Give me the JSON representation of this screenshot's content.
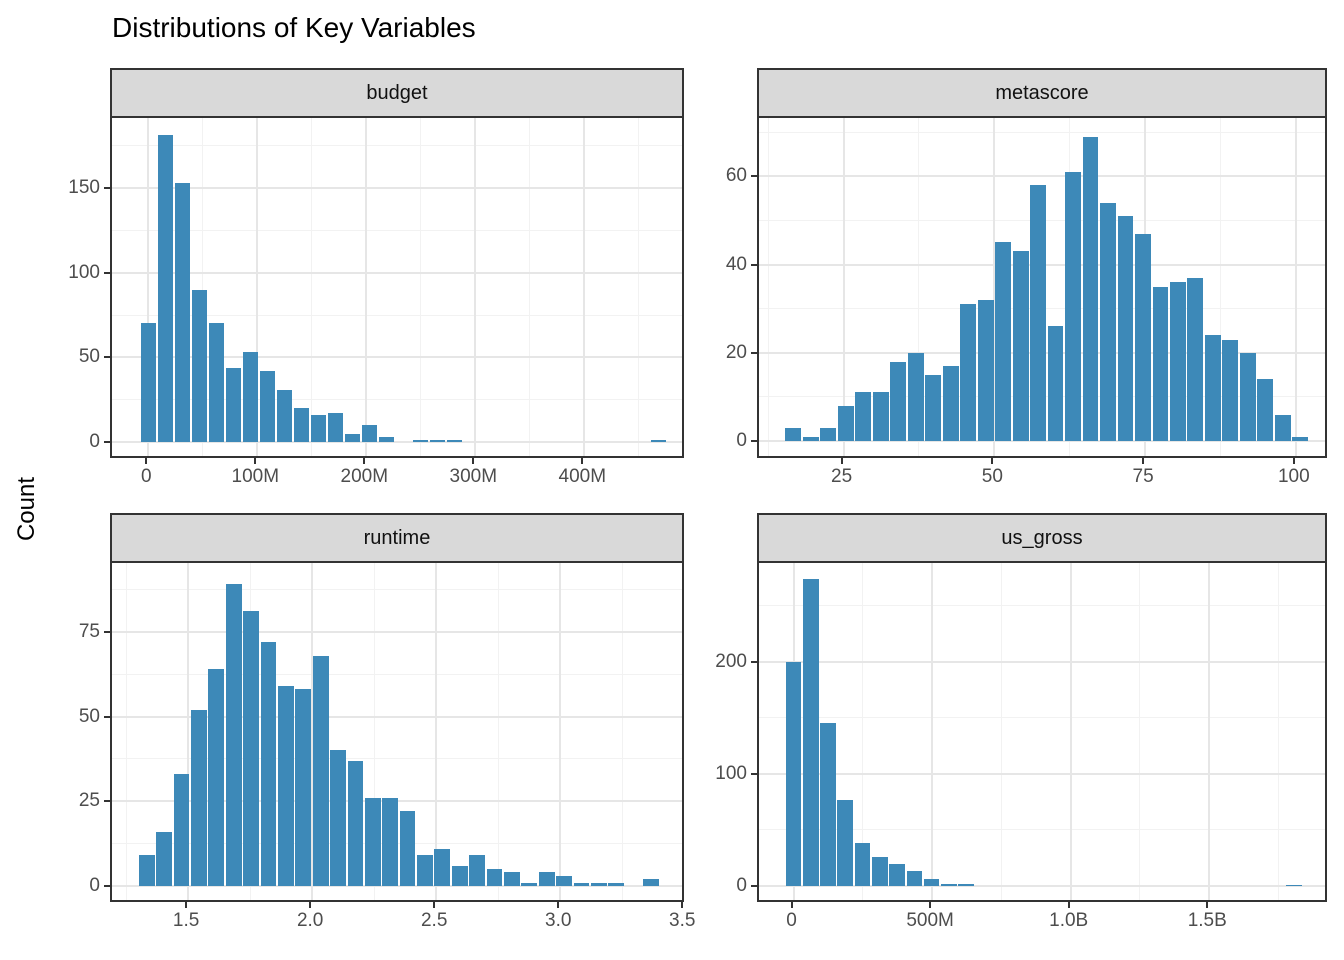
{
  "title": "Distributions of Key Variables",
  "ylabel": "Count",
  "colors": {
    "bar_fill": "#3d89b8",
    "strip_background": "#d9d9d9",
    "panel_border": "#333333",
    "grid_major": "#e6e6e6",
    "grid_minor": "#f2f2f2",
    "tick_text": "#4d4d4d",
    "tick_mark": "#333333"
  },
  "chart_data": [
    {
      "type": "bar",
      "subtype": "histogram",
      "facet": "budget",
      "bin_start": -7.8,
      "bin_width": 15.6,
      "counts": [
        70,
        181,
        153,
        90,
        70,
        44,
        53,
        42,
        31,
        20,
        16,
        17,
        5,
        10,
        3,
        0,
        1,
        1,
        1,
        0,
        0,
        0,
        0,
        0,
        0,
        0,
        0,
        0,
        0,
        0,
        1
      ],
      "xlim": [
        -33.3,
        493.3
      ],
      "ylim": [
        -9.4,
        191.3
      ],
      "x_ticks": [
        {
          "v": 0,
          "label": "0"
        },
        {
          "v": 100,
          "label": "100M"
        },
        {
          "v": 200,
          "label": "200M"
        },
        {
          "v": 300,
          "label": "300M"
        },
        {
          "v": 400,
          "label": "400M"
        }
      ],
      "y_ticks": [
        {
          "v": 0,
          "label": "0"
        },
        {
          "v": 50,
          "label": "50"
        },
        {
          "v": 100,
          "label": "100"
        },
        {
          "v": 150,
          "label": "150"
        }
      ],
      "x_minor": [
        50,
        150,
        250,
        350,
        450
      ],
      "y_minor": [
        25,
        75,
        125,
        175
      ]
    },
    {
      "type": "bar",
      "subtype": "histogram",
      "facet": "metascore",
      "bin_start": 15.2,
      "bin_width": 2.9,
      "counts": [
        3,
        1,
        3,
        8,
        11,
        11,
        18,
        20,
        15,
        17,
        31,
        32,
        45,
        43,
        58,
        26,
        61,
        69,
        54,
        51,
        47,
        35,
        36,
        37,
        24,
        23,
        20,
        14,
        6,
        1
      ],
      "xlim": [
        10.97,
        105.5
      ],
      "ylim": [
        -3.85,
        73.2
      ],
      "x_ticks": [
        {
          "v": 25,
          "label": "25"
        },
        {
          "v": 50,
          "label": "50"
        },
        {
          "v": 75,
          "label": "75"
        },
        {
          "v": 100,
          "label": "100"
        }
      ],
      "y_ticks": [
        {
          "v": 0,
          "label": "0"
        },
        {
          "v": 20,
          "label": "20"
        },
        {
          "v": 40,
          "label": "40"
        },
        {
          "v": 60,
          "label": "60"
        }
      ],
      "x_minor": [
        12.5,
        37.5,
        62.5,
        87.5
      ],
      "y_minor": [
        10,
        30,
        50,
        70
      ]
    },
    {
      "type": "bar",
      "subtype": "histogram",
      "facet": "runtime",
      "bin_start": 1.298,
      "bin_width": 0.0701,
      "counts": [
        9,
        16,
        33,
        52,
        64,
        89,
        81,
        72,
        59,
        58,
        68,
        40,
        37,
        26,
        26,
        22,
        9,
        11,
        6,
        9,
        5,
        4,
        1,
        4,
        3,
        1,
        1,
        1,
        0,
        2
      ],
      "xlim": [
        1.193,
        3.507
      ],
      "ylim": [
        -4.72,
        95.3
      ],
      "x_ticks": [
        {
          "v": 1.5,
          "label": "1.5"
        },
        {
          "v": 2.0,
          "label": "2.0"
        },
        {
          "v": 2.5,
          "label": "2.5"
        },
        {
          "v": 3.0,
          "label": "3.0"
        },
        {
          "v": 3.5,
          "label": "3.5"
        }
      ],
      "y_ticks": [
        {
          "v": 0,
          "label": "0"
        },
        {
          "v": 25,
          "label": "25"
        },
        {
          "v": 50,
          "label": "50"
        },
        {
          "v": 75,
          "label": "75"
        }
      ],
      "x_minor": [
        1.25,
        1.75,
        2.25,
        2.75,
        3.25
      ],
      "y_minor": [
        12.5,
        37.5,
        62.5,
        87.5
      ]
    },
    {
      "type": "bar",
      "subtype": "histogram",
      "facet": "us_gross",
      "bin_start": -31.1,
      "bin_width": 62.3,
      "counts": [
        200,
        274,
        145,
        77,
        38,
        26,
        20,
        13,
        6,
        2,
        2,
        0,
        0,
        0,
        0,
        0,
        0,
        0,
        0,
        0,
        0,
        0,
        0,
        0,
        0,
        0,
        0,
        0,
        0,
        1
      ],
      "xlim": [
        -124.5,
        1932
      ],
      "ylim": [
        -14.26,
        287.9
      ],
      "x_ticks": [
        {
          "v": 0,
          "label": "0"
        },
        {
          "v": 500,
          "label": "500M"
        },
        {
          "v": 1000,
          "label": "1.0B"
        },
        {
          "v": 1500,
          "label": "1.5B"
        }
      ],
      "y_ticks": [
        {
          "v": 0,
          "label": "0"
        },
        {
          "v": 100,
          "label": "100"
        },
        {
          "v": 200,
          "label": "200"
        }
      ],
      "x_minor": [
        250,
        750,
        1250,
        1750
      ],
      "y_minor": [
        50,
        150,
        250
      ]
    }
  ]
}
